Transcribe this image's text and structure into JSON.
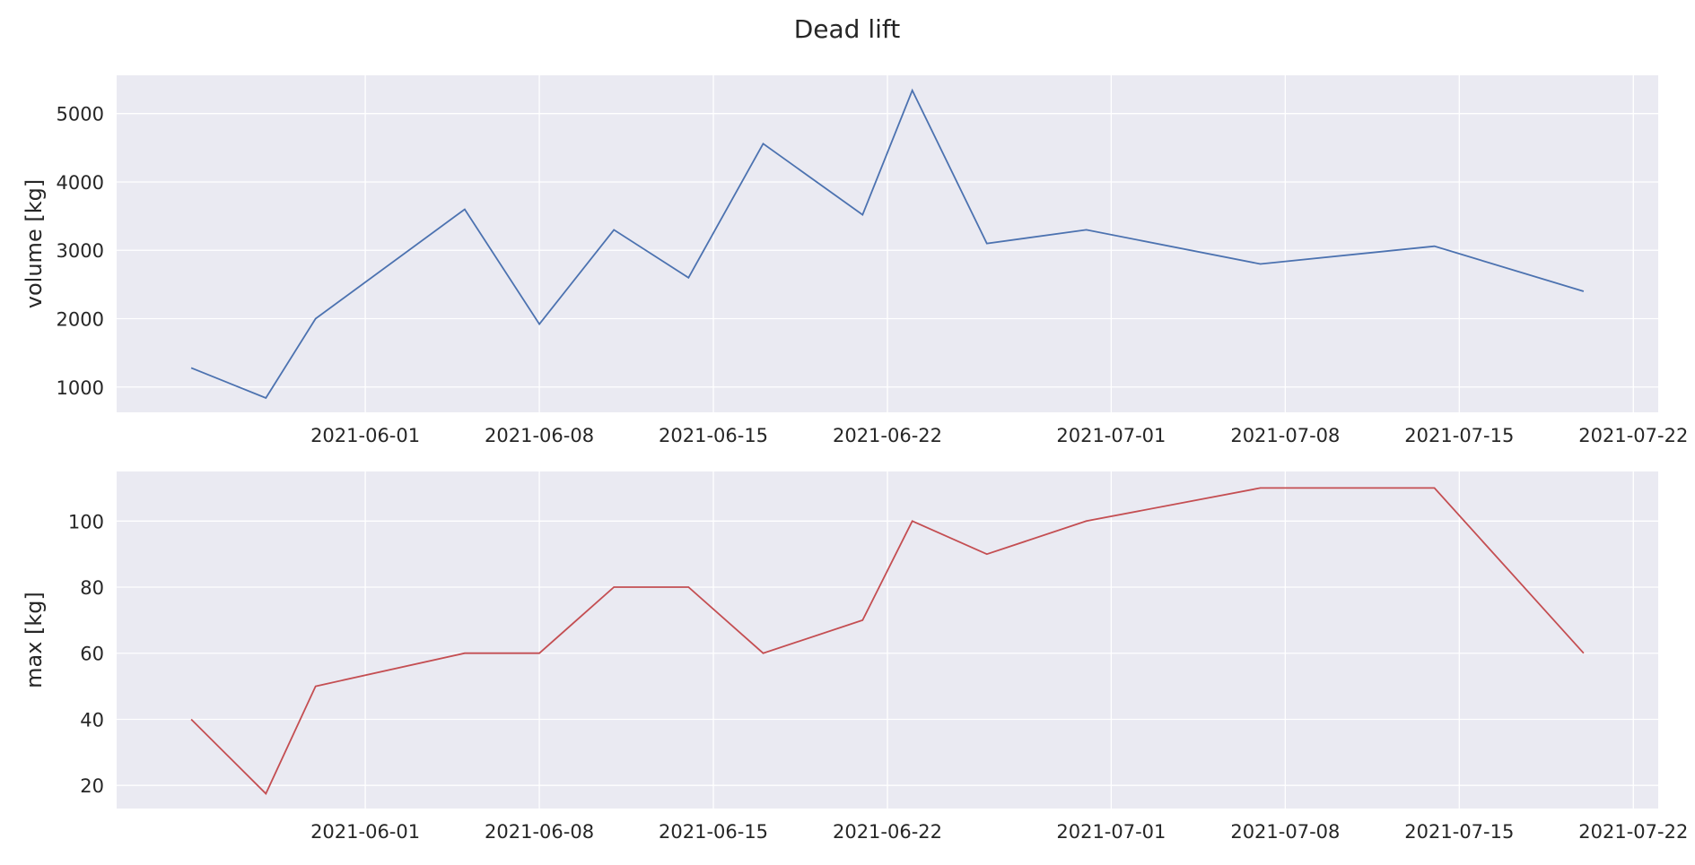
{
  "chart_data": [
    {
      "type": "line",
      "title": "Dead lift",
      "xlabel": "",
      "ylabel": "volume [kg]",
      "x_axis_type": "date",
      "xlim": [
        "2021-05-22",
        "2021-07-23"
      ],
      "ylim": [
        630,
        5560
      ],
      "yticks": [
        1000,
        2000,
        3000,
        4000,
        5000
      ],
      "xticks": [
        "2021-06-01",
        "2021-06-08",
        "2021-06-15",
        "2021-06-22",
        "2021-07-01",
        "2021-07-08",
        "2021-07-15",
        "2021-07-22"
      ],
      "grid": true,
      "color": "#4c72b0",
      "series": [
        {
          "x": [
            "2021-05-25",
            "2021-05-28",
            "2021-05-30",
            "2021-06-05",
            "2021-06-08",
            "2021-06-11",
            "2021-06-14",
            "2021-06-17",
            "2021-06-21",
            "2021-06-23",
            "2021-06-26",
            "2021-06-30",
            "2021-07-07",
            "2021-07-14",
            "2021-07-20"
          ],
          "values": [
            1280,
            840,
            2000,
            3600,
            1920,
            3300,
            2600,
            4560,
            3520,
            5340,
            3100,
            3300,
            2800,
            3060,
            2400
          ]
        }
      ]
    },
    {
      "type": "line",
      "title": "",
      "xlabel": "",
      "ylabel": "max [kg]",
      "x_axis_type": "date",
      "xlim": [
        "2021-05-22",
        "2021-07-23"
      ],
      "ylim": [
        13,
        115
      ],
      "yticks": [
        20,
        40,
        60,
        80,
        100
      ],
      "xticks": [
        "2021-06-01",
        "2021-06-08",
        "2021-06-15",
        "2021-06-22",
        "2021-07-01",
        "2021-07-08",
        "2021-07-15",
        "2021-07-22"
      ],
      "grid": true,
      "color": "#c44e52",
      "series": [
        {
          "x": [
            "2021-05-25",
            "2021-05-28",
            "2021-05-30",
            "2021-06-05",
            "2021-06-08",
            "2021-06-11",
            "2021-06-14",
            "2021-06-17",
            "2021-06-21",
            "2021-06-23",
            "2021-06-26",
            "2021-06-30",
            "2021-07-07",
            "2021-07-14",
            "2021-07-20"
          ],
          "values": [
            40,
            17.5,
            50,
            60,
            60,
            80,
            80,
            60,
            70,
            100,
            90,
            100,
            110,
            110,
            60
          ]
        }
      ]
    }
  ]
}
